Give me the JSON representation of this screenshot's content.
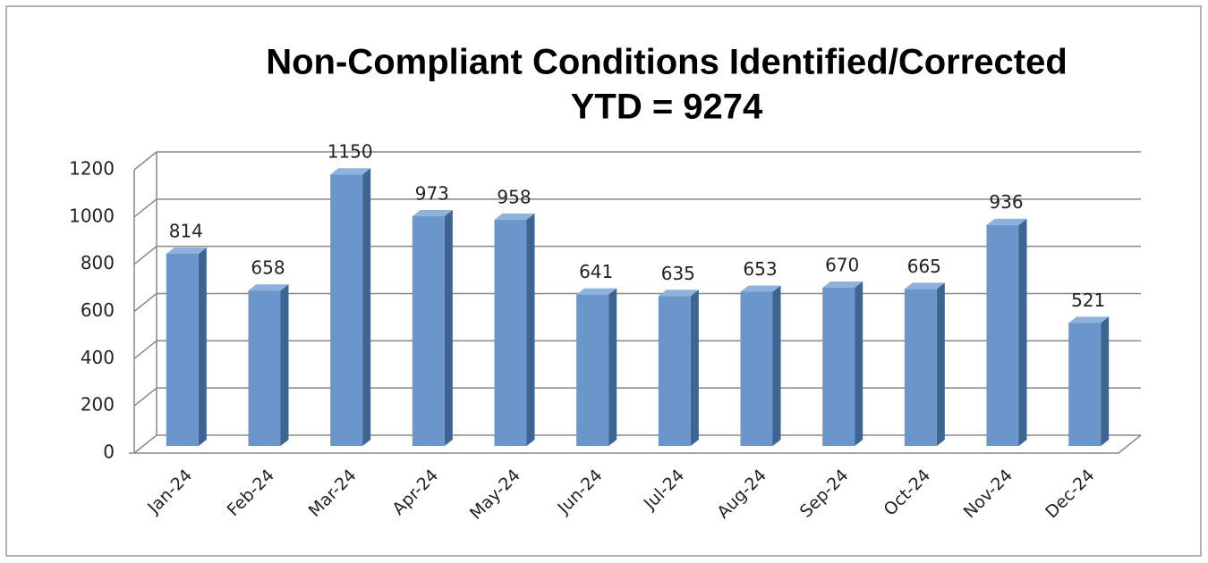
{
  "chart_data": {
    "type": "bar3d",
    "title": "Non-Compliant Conditions Identified/Corrected",
    "subtitle": "YTD = 9274",
    "categories": [
      "Jan-24",
      "Feb-24",
      "Mar-24",
      "Apr-24",
      "May-24",
      "Jun-24",
      "Jul-24",
      "Aug-24",
      "Sep-24",
      "Oct-24",
      "Nov-24",
      "Dec-24"
    ],
    "values": [
      814,
      658,
      1150,
      973,
      958,
      641,
      635,
      653,
      670,
      665,
      936,
      521
    ],
    "color": "#6a96cc",
    "ylim": [
      0,
      1200
    ],
    "yticks": [
      0,
      200,
      400,
      600,
      800,
      1000,
      1200
    ],
    "grid": true
  }
}
